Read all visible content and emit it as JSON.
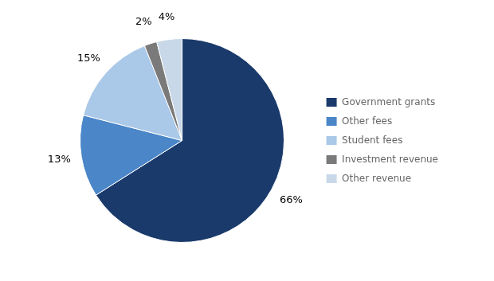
{
  "chart_data": {
    "type": "pie",
    "categories": [
      "Government grants",
      "Other fees",
      "Student fees",
      "Investment revenue",
      "Other revenue"
    ],
    "values": [
      66,
      13,
      15,
      2,
      4
    ],
    "value_labels": [
      "66%",
      "13%",
      "15%",
      "2%",
      "4%"
    ],
    "colors": [
      "#1a3a6b",
      "#4a86c8",
      "#aac8e8",
      "#7a7a7a",
      "#c8d8e8"
    ],
    "data_labels": true,
    "legend": "right"
  }
}
